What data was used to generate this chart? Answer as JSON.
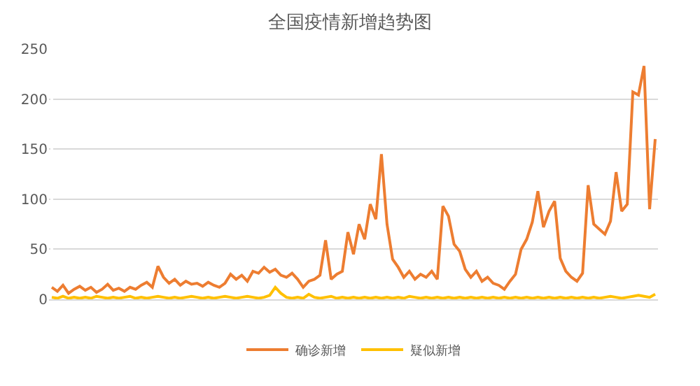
{
  "chart_data": {
    "type": "line",
    "title": "全国疫情新增趋势图",
    "categories": [
      null,
      null,
      null,
      null,
      null,
      null,
      null,
      null,
      null,
      null,
      null,
      null,
      null,
      null,
      null,
      null,
      null,
      null,
      null,
      null,
      null,
      null,
      null,
      null,
      null,
      null,
      null,
      null,
      null,
      null,
      null,
      null,
      null,
      null,
      null,
      null,
      null,
      null,
      null,
      null,
      null,
      null,
      null,
      null,
      null,
      null,
      null,
      null,
      null,
      null,
      null,
      null,
      null,
      null,
      null,
      null,
      null,
      null,
      null,
      null,
      null,
      null,
      null,
      null,
      null,
      null,
      null,
      null,
      null,
      null,
      null,
      null,
      null,
      null,
      null,
      null,
      null,
      null,
      null,
      null,
      null,
      null,
      null,
      null,
      null,
      null,
      null,
      null,
      null,
      null,
      null,
      null,
      null,
      null,
      null,
      null,
      null,
      null,
      null,
      null,
      null,
      null,
      null,
      null,
      null,
      null,
      null,
      null,
      null
    ],
    "series": [
      {
        "name": "确诊新增",
        "color": "#ed7d31",
        "values": [
          12,
          8,
          14,
          6,
          10,
          13,
          9,
          12,
          7,
          10,
          15,
          9,
          11,
          8,
          12,
          10,
          14,
          17,
          12,
          33,
          22,
          16,
          20,
          14,
          18,
          15,
          16,
          13,
          17,
          14,
          12,
          16,
          25,
          20,
          24,
          18,
          28,
          26,
          32,
          27,
          30,
          24,
          22,
          26,
          20,
          12,
          18,
          20,
          24,
          59,
          20,
          25,
          28,
          67,
          45,
          75,
          60,
          95,
          80,
          145,
          75,
          40,
          32,
          22,
          28,
          20,
          25,
          22,
          28,
          20,
          93,
          83,
          55,
          48,
          30,
          22,
          28,
          18,
          22,
          16,
          14,
          10,
          18,
          25,
          50,
          60,
          77,
          108,
          72,
          88,
          98,
          41,
          28,
          22,
          18,
          26,
          114,
          75,
          70,
          65,
          78,
          127,
          88,
          95,
          207,
          204,
          233,
          90,
          160
        ]
      },
      {
        "name": "疑似新增",
        "color": "#ffc000",
        "values": [
          2,
          1,
          3,
          1,
          2,
          1,
          2,
          1,
          3,
          2,
          1,
          2,
          1,
          2,
          3,
          1,
          2,
          1,
          2,
          3,
          2,
          1,
          2,
          1,
          2,
          3,
          2,
          1,
          2,
          1,
          2,
          3,
          2,
          1,
          2,
          3,
          2,
          1,
          2,
          4,
          12,
          6,
          2,
          1,
          2,
          1,
          5,
          2,
          1,
          2,
          3,
          1,
          2,
          1,
          2,
          1,
          2,
          1,
          2,
          1,
          2,
          1,
          2,
          1,
          3,
          2,
          1,
          2,
          1,
          2,
          1,
          2,
          1,
          2,
          1,
          2,
          1,
          2,
          1,
          2,
          1,
          2,
          1,
          2,
          1,
          2,
          1,
          2,
          1,
          2,
          1,
          2,
          1,
          2,
          1,
          2,
          1,
          2,
          1,
          2,
          3,
          2,
          1,
          2,
          3,
          4,
          3,
          2,
          5
        ]
      }
    ],
    "ylim": [
      0,
      250
    ],
    "yticks": [
      0,
      50,
      100,
      150,
      200,
      250
    ],
    "grid": "y",
    "legend": "bottom",
    "marker": "none",
    "line_style": "solid"
  }
}
